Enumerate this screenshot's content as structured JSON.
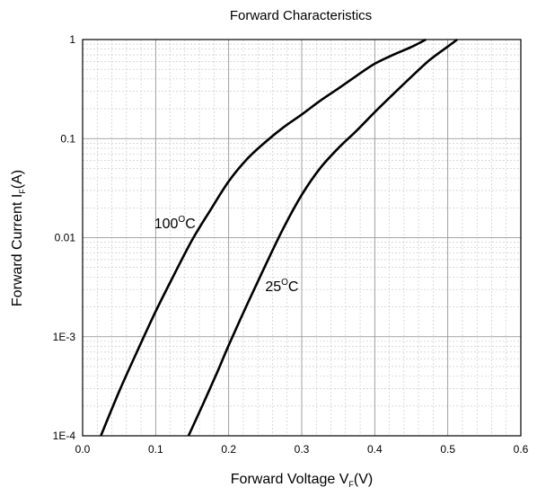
{
  "chart_data": {
    "type": "line",
    "title": "Forward Characteristics",
    "xlabel": {
      "text": "Forward Voltage V",
      "sub": "F",
      "suffix": "(V)"
    },
    "ylabel": {
      "text": "Forward Current I",
      "sub": "F",
      "suffix": "(A)"
    },
    "x_range": [
      0.0,
      0.6
    ],
    "y_range": [
      0.0001,
      1
    ],
    "y_scale": "log",
    "grid": true,
    "x_ticks": [
      {
        "value": 0.0,
        "label": "0.0"
      },
      {
        "value": 0.1,
        "label": "0.1"
      },
      {
        "value": 0.2,
        "label": "0.2"
      },
      {
        "value": 0.3,
        "label": "0.3"
      },
      {
        "value": 0.4,
        "label": "0.4"
      },
      {
        "value": 0.5,
        "label": "0.5"
      },
      {
        "value": 0.6,
        "label": "0.6"
      }
    ],
    "y_ticks": [
      {
        "value": 0.0001,
        "label": "1E-4"
      },
      {
        "value": 0.001,
        "label": "1E-3"
      },
      {
        "value": 0.01,
        "label": "0.01"
      },
      {
        "value": 0.1,
        "label": "0.1"
      },
      {
        "value": 1,
        "label": "1"
      }
    ],
    "series": [
      {
        "name": "100°C",
        "label_parts": {
          "base": "100",
          "sup": "O",
          "suffix": "C"
        },
        "color": "#000000",
        "points": [
          [
            0.025,
            0.0001
          ],
          [
            0.05,
            0.00028
          ],
          [
            0.075,
            0.00072
          ],
          [
            0.1,
            0.0018
          ],
          [
            0.125,
            0.0042
          ],
          [
            0.15,
            0.0095
          ],
          [
            0.175,
            0.019
          ],
          [
            0.2,
            0.037
          ],
          [
            0.225,
            0.062
          ],
          [
            0.25,
            0.092
          ],
          [
            0.275,
            0.13
          ],
          [
            0.3,
            0.175
          ],
          [
            0.325,
            0.24
          ],
          [
            0.35,
            0.32
          ],
          [
            0.375,
            0.43
          ],
          [
            0.4,
            0.57
          ],
          [
            0.425,
            0.7
          ],
          [
            0.45,
            0.84
          ],
          [
            0.47,
            1.0
          ]
        ]
      },
      {
        "name": "25°C",
        "label_parts": {
          "base": "25",
          "sup": "O",
          "suffix": "C"
        },
        "color": "#000000",
        "points": [
          [
            0.145,
            0.0001
          ],
          [
            0.165,
            0.00021
          ],
          [
            0.185,
            0.00045
          ],
          [
            0.2,
            0.00082
          ],
          [
            0.225,
            0.0021
          ],
          [
            0.25,
            0.0052
          ],
          [
            0.275,
            0.0125
          ],
          [
            0.3,
            0.027
          ],
          [
            0.325,
            0.05
          ],
          [
            0.35,
            0.08
          ],
          [
            0.375,
            0.12
          ],
          [
            0.4,
            0.185
          ],
          [
            0.425,
            0.28
          ],
          [
            0.45,
            0.42
          ],
          [
            0.475,
            0.62
          ],
          [
            0.5,
            0.85
          ],
          [
            0.513,
            1.0
          ]
        ]
      }
    ],
    "annotations": [
      {
        "series": "100°C",
        "x": 0.098,
        "y": 0.0125
      },
      {
        "series": "25°C",
        "x": 0.25,
        "y": 0.0029
      }
    ]
  }
}
